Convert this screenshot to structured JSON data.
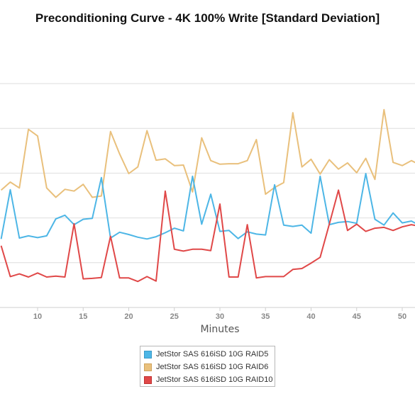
{
  "chart_data": {
    "type": "line",
    "title": "Preconditioning Curve - 4K 100% Write [Standard Deviation]",
    "xlabel": "Minutes",
    "ylabel": "",
    "x_ticks": [
      10,
      15,
      20,
      25,
      30,
      35,
      40,
      45,
      50
    ],
    "y_gridlines": [
      5,
      4,
      3,
      2,
      1
    ],
    "grid": true,
    "legend_position": "bottom",
    "x": [
      6,
      7,
      8,
      9,
      10,
      11,
      12,
      13,
      14,
      15,
      16,
      17,
      18,
      19,
      20,
      21,
      22,
      23,
      24,
      25,
      26,
      27,
      28,
      29,
      30,
      31,
      32,
      33,
      34,
      35,
      36,
      37,
      38,
      39,
      40,
      41,
      42,
      43,
      44,
      45,
      46,
      47,
      48,
      49,
      50,
      51,
      52
    ],
    "series": [
      {
        "name": "JetStor SAS 616iSD 10G RAID5",
        "color": "#4db6e6",
        "values": [
          1.53,
          2.63,
          1.55,
          1.6,
          1.56,
          1.6,
          1.98,
          2.06,
          1.85,
          1.97,
          1.99,
          2.9,
          1.55,
          1.68,
          1.63,
          1.57,
          1.53,
          1.58,
          1.67,
          1.77,
          1.71,
          2.93,
          1.86,
          2.53,
          1.7,
          1.72,
          1.54,
          1.69,
          1.64,
          1.62,
          2.74,
          1.84,
          1.81,
          1.84,
          1.66,
          2.93,
          1.85,
          1.9,
          1.92,
          1.88,
          2.99,
          1.97,
          1.84,
          2.11,
          1.89,
          1.93,
          1.82
        ]
      },
      {
        "name": "JetStor SAS 616iSD 10G RAID6",
        "color": "#e9c07c",
        "values": [
          2.62,
          2.8,
          2.67,
          3.98,
          3.83,
          2.67,
          2.46,
          2.64,
          2.6,
          2.75,
          2.46,
          2.49,
          3.93,
          3.43,
          2.99,
          3.14,
          3.95,
          3.29,
          3.32,
          3.17,
          3.18,
          2.58,
          3.79,
          3.28,
          3.2,
          3.21,
          3.21,
          3.28,
          3.75,
          2.53,
          2.68,
          2.79,
          4.35,
          3.14,
          3.31,
          2.98,
          3.3,
          3.09,
          3.23,
          3.01,
          3.33,
          2.86,
          4.42,
          3.24,
          3.17,
          3.28,
          3.18
        ]
      },
      {
        "name": "JetStor SAS 616iSD 10G RAID10",
        "color": "#e04848",
        "values": [
          1.38,
          0.69,
          0.75,
          0.68,
          0.77,
          0.68,
          0.7,
          0.68,
          1.87,
          0.64,
          0.65,
          0.67,
          1.59,
          0.66,
          0.66,
          0.58,
          0.69,
          0.59,
          2.6,
          1.3,
          1.26,
          1.3,
          1.3,
          1.27,
          2.31,
          0.68,
          0.68,
          1.85,
          0.66,
          0.69,
          0.69,
          0.69,
          0.85,
          0.87,
          0.99,
          1.12,
          1.86,
          2.62,
          1.72,
          1.86,
          1.7,
          1.77,
          1.79,
          1.72,
          1.8,
          1.85,
          1.81
        ]
      }
    ]
  }
}
